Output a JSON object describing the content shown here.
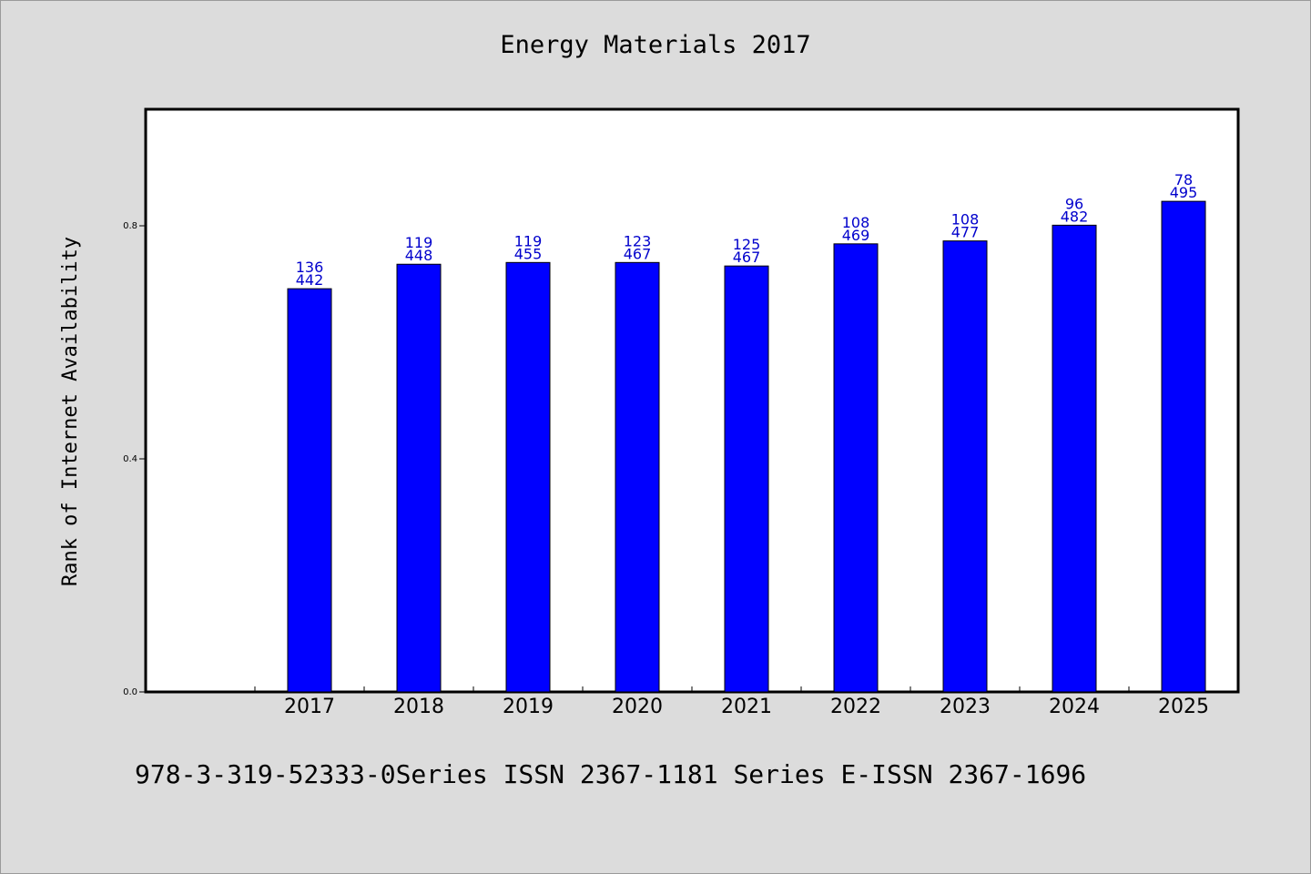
{
  "title": "Energy Materials 2017",
  "footer": "978-3-319-52333-0Series ISSN 2367-1181 Series E-ISSN 2367-1696",
  "colors": {
    "bar": "#0000ff",
    "bar_label": "#0000cc",
    "plot_bg": "#ffffff",
    "page_bg": "#dcdcdc"
  },
  "chart_data": {
    "type": "bar",
    "title": "Energy Materials 2017",
    "ylabel": "Rank of Internet Availability",
    "xlabel": "",
    "ylim": [
      0,
      1.0
    ],
    "yticks": [
      0.0,
      0.4,
      0.8
    ],
    "ytick_labels": [
      "0.0",
      "0.4",
      "0.8"
    ],
    "categories": [
      "2017",
      "2018",
      "2019",
      "2020",
      "2021",
      "2022",
      "2023",
      "2024",
      "2025"
    ],
    "values": [
      0.692,
      0.734,
      0.737,
      0.737,
      0.731,
      0.769,
      0.774,
      0.801,
      0.842
    ],
    "labels_top": [
      "136",
      "119",
      "119",
      "123",
      "125",
      "108",
      "108",
      "96",
      "78"
    ],
    "labels_bottom": [
      "442",
      "448",
      "455",
      "467",
      "467",
      "469",
      "477",
      "482",
      "495"
    ],
    "grid": false,
    "legend": "none"
  }
}
